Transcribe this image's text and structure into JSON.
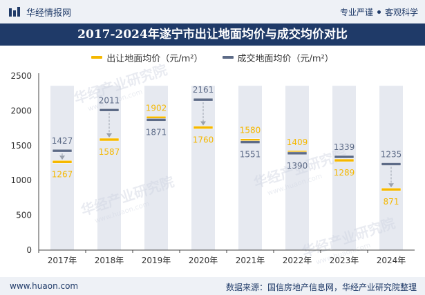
{
  "brand": {
    "name": "华经情报网"
  },
  "slogan": {
    "left": "专业严谨",
    "right": "客观科学"
  },
  "footer": {
    "site": "www.huaon.com",
    "source": "数据来源：国信房地产信息网，华经产业研究院整理"
  },
  "watermark": "华经产业研究院",
  "watermark_url": "www.huaon.com",
  "colors": {
    "accent": "#1f3a68",
    "sale": "#f5b800",
    "deal": "#5d6b87",
    "column": "#e6e9f0"
  },
  "chart_data": {
    "type": "dumbbell",
    "title": "2017-2024年遂宁市出让地面均价与成交均价对比",
    "categories": [
      "2017年",
      "2018年",
      "2019年",
      "2020年",
      "2021年",
      "2022年",
      "2023年",
      "2024年"
    ],
    "series": [
      {
        "name": "出让地面均价（元/m²）",
        "values": [
          1267,
          1587,
          1902,
          1760,
          1580,
          1409,
          1289,
          871
        ]
      },
      {
        "name": "成交地面均价（元/m²）",
        "values": [
          1427,
          2011,
          1871,
          2161,
          1551,
          1390,
          1339,
          1235
        ]
      }
    ],
    "yticks": [
      0,
      500,
      1000,
      1500,
      2000,
      2500
    ],
    "ylim": [
      0,
      2500
    ],
    "xlabel": "",
    "ylabel": ""
  }
}
